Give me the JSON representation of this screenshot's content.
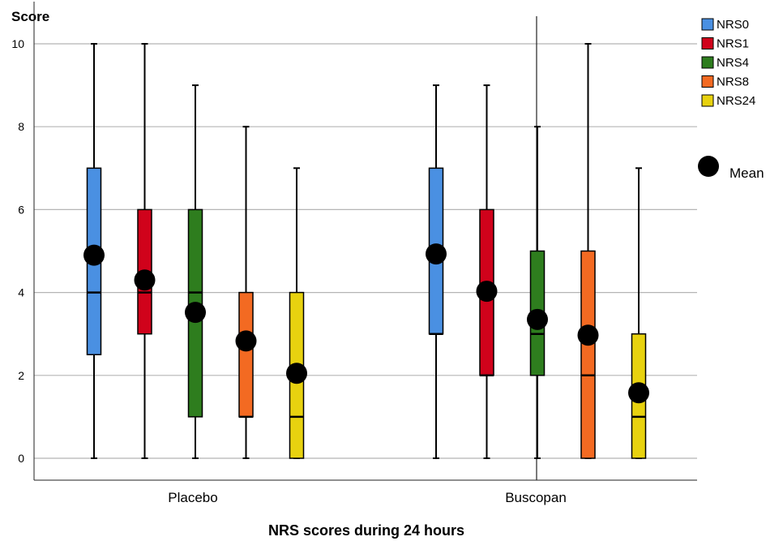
{
  "chart_data": {
    "type": "boxplot",
    "ylabel": "Score",
    "xlabel": "NRS scores during 24 hours",
    "ylim": [
      -0.5,
      10.5
    ],
    "yticks": [
      0,
      2,
      4,
      6,
      8,
      10
    ],
    "grid": true,
    "legend_position": "right",
    "categories": [
      "Placebo",
      "Buscopan"
    ],
    "mean_label": "Mean",
    "series": [
      {
        "name": "NRS0",
        "color": "#4a90e2",
        "boxes": [
          {
            "min": 0,
            "q1": 2.5,
            "median": 4,
            "q3": 7,
            "max": 10,
            "mean": 4.9
          },
          {
            "min": 0,
            "q1": 3,
            "median": 3,
            "q3": 7,
            "max": 9,
            "mean": 4.93
          }
        ]
      },
      {
        "name": "NRS1",
        "color": "#d0021b",
        "boxes": [
          {
            "min": 0,
            "q1": 3,
            "median": 4,
            "q3": 6,
            "max": 10,
            "mean": 4.3
          },
          {
            "min": 0,
            "q1": 2,
            "median": 2,
            "q3": 6,
            "max": 9,
            "mean": 4.03
          }
        ]
      },
      {
        "name": "NRS4",
        "color": "#2e7d1e",
        "boxes": [
          {
            "min": 0,
            "q1": 1,
            "median": 4,
            "q3": 6,
            "max": 9,
            "mean": 3.52
          },
          {
            "min": 0,
            "q1": 2,
            "median": 3,
            "q3": 5,
            "max": 8,
            "mean": 3.35
          }
        ]
      },
      {
        "name": "NRS8",
        "color": "#f36a22",
        "boxes": [
          {
            "min": 0,
            "q1": 1,
            "median": 1,
            "q3": 4,
            "max": 8,
            "mean": 2.83
          },
          {
            "min": 0,
            "q1": 0,
            "median": 2,
            "q3": 5,
            "max": 10,
            "mean": 2.97
          }
        ]
      },
      {
        "name": "NRS24",
        "color": "#e8d20f",
        "boxes": [
          {
            "min": 0,
            "q1": 0,
            "median": 1,
            "q3": 4,
            "max": 7,
            "mean": 2.05
          },
          {
            "min": 0,
            "q1": 0,
            "median": 1,
            "q3": 3,
            "max": 7,
            "mean": 1.58
          }
        ]
      }
    ]
  }
}
